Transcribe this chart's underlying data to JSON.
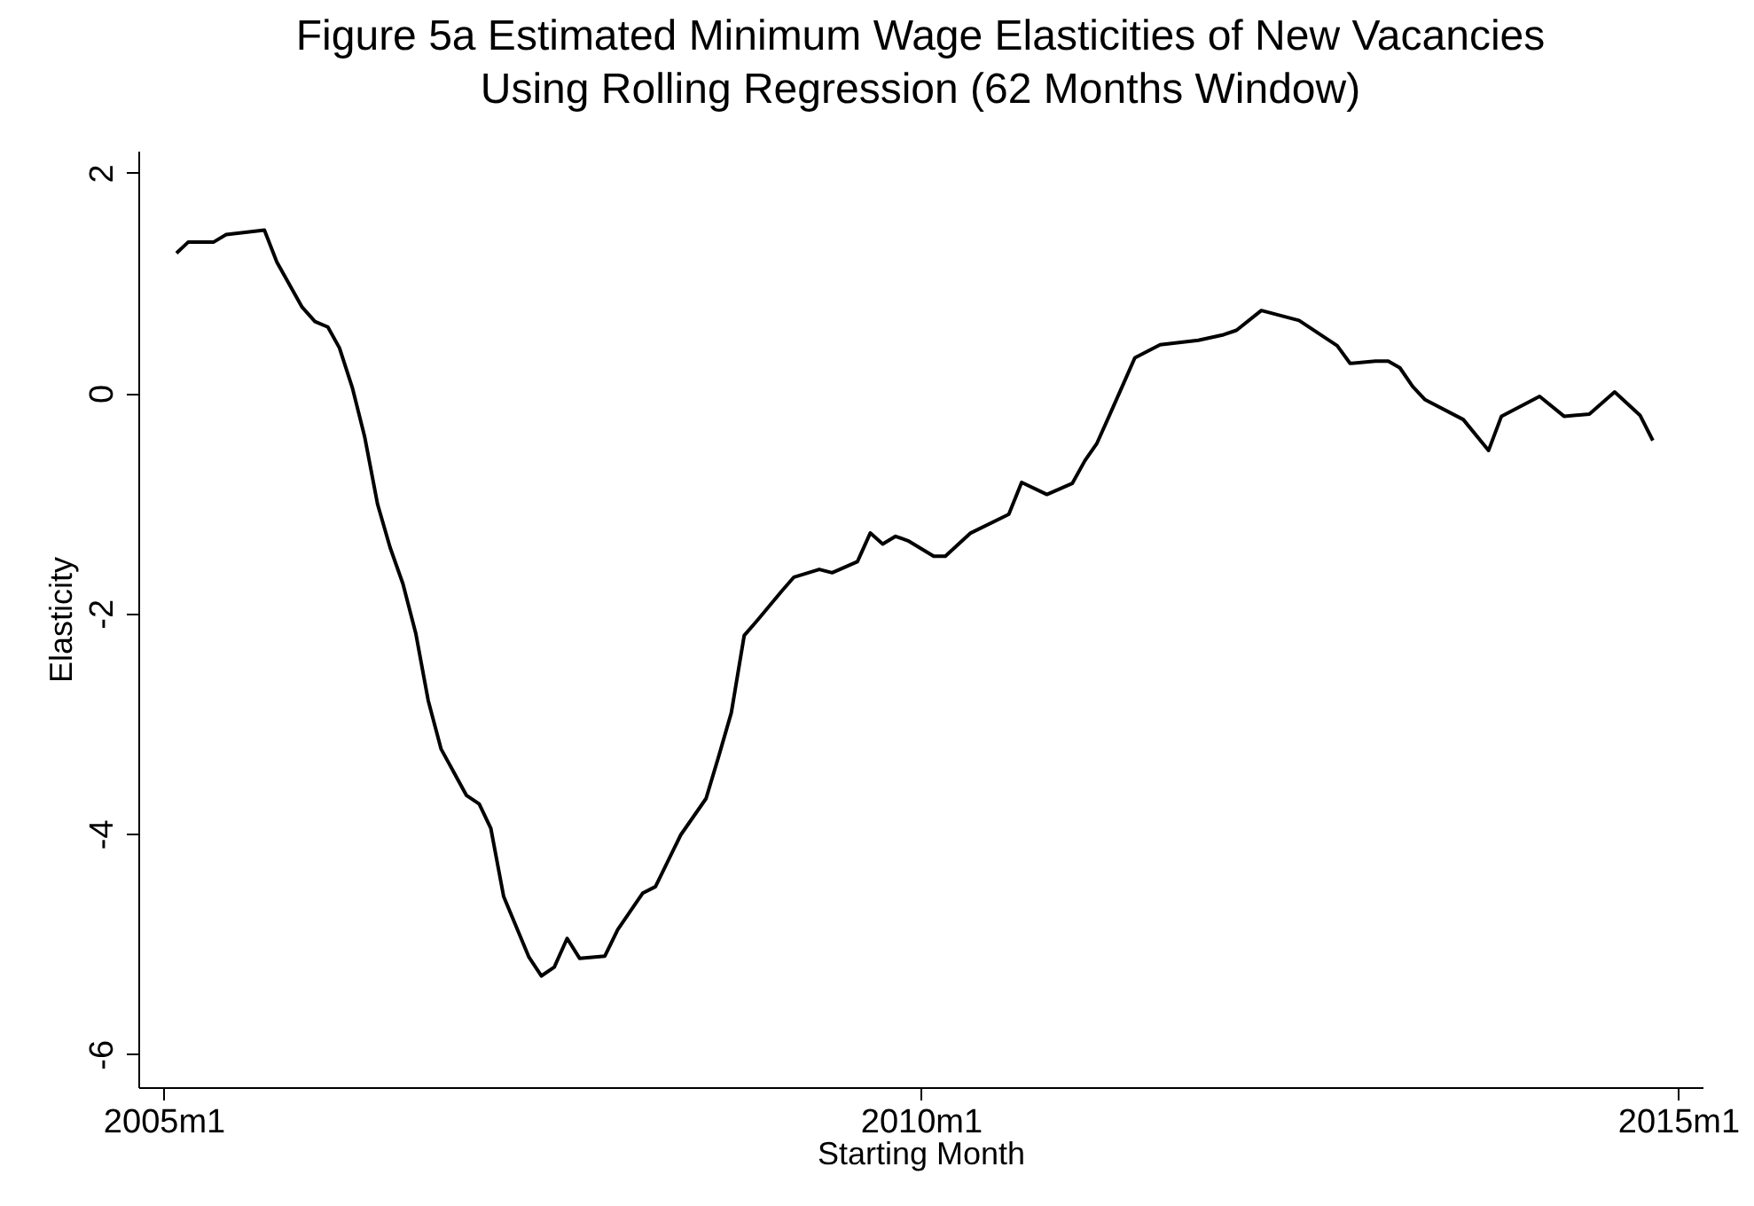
{
  "chart_data": {
    "type": "line",
    "title": [
      "Figure 5a Estimated Minimum Wage Elasticities of New Vacancies",
      "Using Rolling Regression (62 Months Window)"
    ],
    "xlabel": "Starting Month",
    "ylabel": "Elasticity",
    "xlim": [
      "2004-11",
      "2015-03"
    ],
    "ylim": [
      -6.3,
      2.2
    ],
    "xticks": [
      {
        "value": "2005-01",
        "label": "2005m1"
      },
      {
        "value": "2010-01",
        "label": "2010m1"
      },
      {
        "value": "2015-01",
        "label": "2015m1"
      }
    ],
    "yticks": [
      2,
      0,
      -2,
      -4,
      -6
    ],
    "grid": false,
    "marker": "none",
    "line_style": "solid",
    "series": [
      {
        "color": "#000000",
        "x": [
          "2005-02",
          "2005-03",
          "2005-05",
          "2005-06",
          "2005-09",
          "2005-10",
          "2005-12",
          "2006-01",
          "2006-02",
          "2006-03",
          "2006-04",
          "2006-05",
          "2006-06",
          "2006-07",
          "2006-08",
          "2006-09",
          "2006-10",
          "2006-11",
          "2007-01",
          "2007-02",
          "2007-03",
          "2007-04",
          "2007-06",
          "2007-07",
          "2007-08",
          "2007-09",
          "2007-10",
          "2007-12",
          "2008-01",
          "2008-03",
          "2008-04",
          "2008-06",
          "2008-08",
          "2008-09",
          "2008-10",
          "2008-11",
          "2008-12",
          "2009-02",
          "2009-03",
          "2009-05",
          "2009-06",
          "2009-08",
          "2009-09",
          "2009-10",
          "2009-11",
          "2009-12",
          "2010-02",
          "2010-03",
          "2010-05",
          "2010-08",
          "2010-09",
          "2010-11",
          "2011-01",
          "2011-02",
          "2011-03",
          "2011-04",
          "2011-06",
          "2011-08",
          "2011-11",
          "2012-01",
          "2012-02",
          "2012-04",
          "2012-07",
          "2012-10",
          "2012-11",
          "2013-01",
          "2013-02",
          "2013-03",
          "2013-04",
          "2013-05",
          "2013-08",
          "2013-10",
          "2013-11",
          "2014-02",
          "2014-04",
          "2014-06",
          "2014-08",
          "2014-10",
          "2014-11"
        ],
        "values": [
          1.27,
          1.37,
          1.37,
          1.44,
          1.48,
          1.19,
          0.78,
          0.65,
          0.6,
          0.41,
          0.05,
          -0.4,
          -1.01,
          -1.4,
          -1.73,
          -2.18,
          -2.79,
          -3.23,
          -3.65,
          -3.73,
          -3.95,
          -4.57,
          -5.12,
          -5.29,
          -5.21,
          -4.95,
          -5.13,
          -5.11,
          -4.87,
          -4.54,
          -4.48,
          -4.01,
          -3.68,
          -3.29,
          -2.9,
          -2.2,
          -2.07,
          -1.79,
          -1.67,
          -1.6,
          -1.63,
          -1.53,
          -1.27,
          -1.37,
          -1.3,
          -1.34,
          -1.48,
          -1.48,
          -1.27,
          -1.1,
          -0.81,
          -0.92,
          -0.82,
          -0.61,
          -0.46,
          -0.2,
          0.32,
          0.44,
          0.48,
          0.53,
          0.57,
          0.75,
          0.66,
          0.43,
          0.27,
          0.29,
          0.29,
          0.23,
          0.06,
          -0.06,
          -0.24,
          -0.52,
          -0.21,
          -0.03,
          -0.21,
          -0.19,
          0.01,
          -0.2,
          -0.43
        ]
      }
    ]
  }
}
